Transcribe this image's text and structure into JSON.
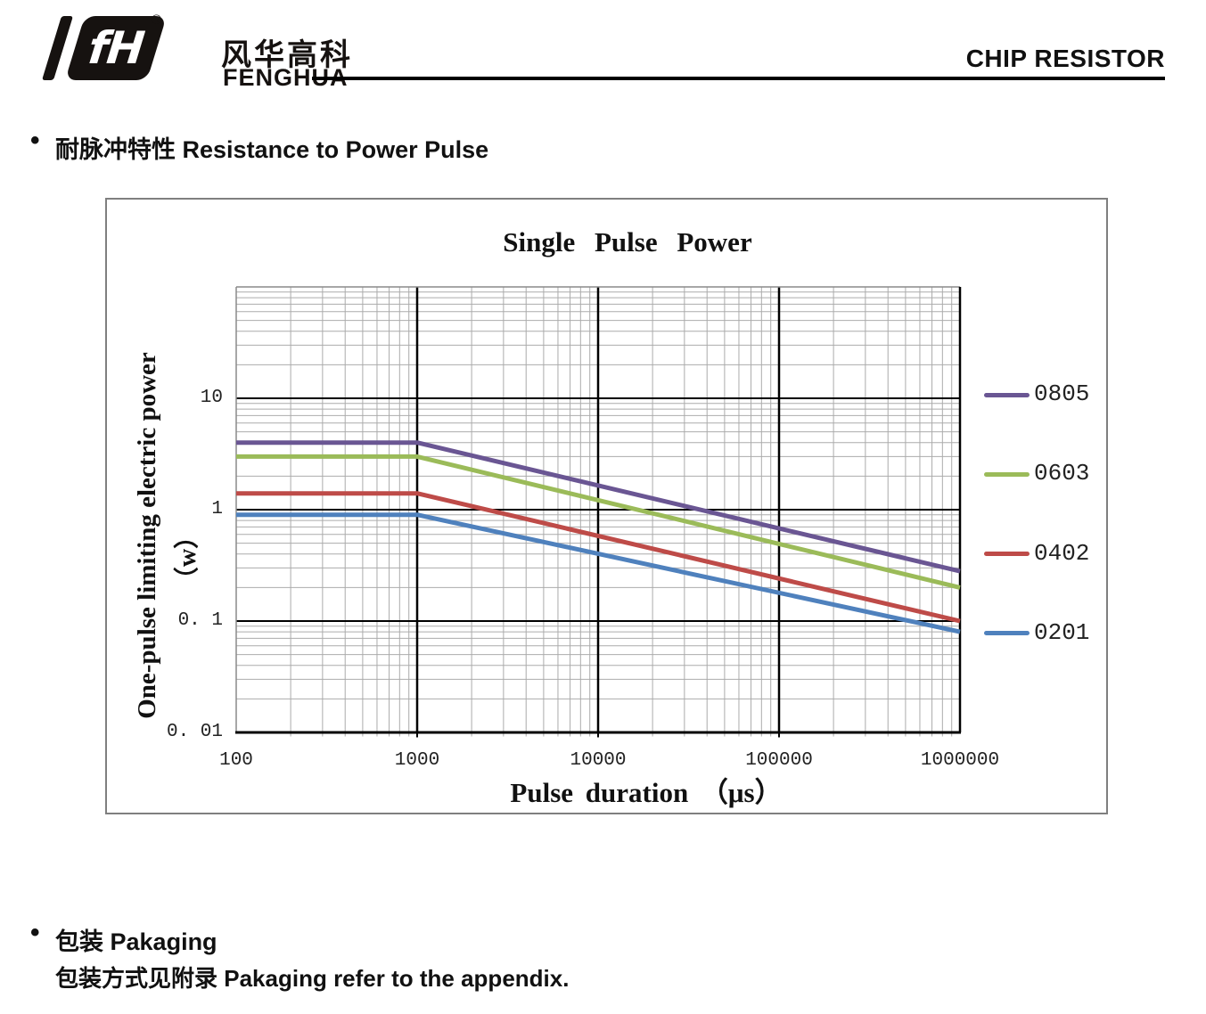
{
  "header": {
    "brand_cn": "风华高科",
    "brand_en": "FENGHUA",
    "registered_mark": "®",
    "logo_monogram": "fH",
    "doc_title": "CHIP RESISTOR"
  },
  "section": {
    "bullet": "•",
    "title_cn": "耐脉冲特性",
    "title_en": "Resistance to Power Pulse"
  },
  "chart_data": {
    "type": "line",
    "title": "Single Pulse Power",
    "xlabel": "Pulse duration （μs）",
    "ylabel_line1": "One-pulse limiting electric power",
    "ylabel_line2": "（w）",
    "x_scale": "log",
    "y_scale": "log",
    "xlim": [
      100,
      1000000
    ],
    "ylim": [
      0.01,
      100
    ],
    "x_ticks": [
      {
        "value": 100,
        "label": "100"
      },
      {
        "value": 1000,
        "label": "1000"
      },
      {
        "value": 10000,
        "label": "10000"
      },
      {
        "value": 100000,
        "label": "100000"
      },
      {
        "value": 1000000,
        "label": "1000000"
      }
    ],
    "y_ticks": [
      {
        "value": 10,
        "label": "10"
      },
      {
        "value": 1,
        "label": "1"
      },
      {
        "value": 0.1,
        "label": "0. 1"
      },
      {
        "value": 0.01,
        "label": "0. 01"
      }
    ],
    "grid": {
      "minor": true,
      "minor_color": "#ABABAB",
      "major_color": "#000000",
      "frame_color": "#8A8A8A"
    },
    "legend_position": "right",
    "series": [
      {
        "name": "0805",
        "color": "#6A5693",
        "x": [
          100,
          1000,
          1000000
        ],
        "y": [
          4,
          4,
          0.28
        ]
      },
      {
        "name": "0603",
        "color": "#9BBB59",
        "x": [
          100,
          1000,
          1000000
        ],
        "y": [
          3,
          3,
          0.2
        ]
      },
      {
        "name": "0402",
        "color": "#BE4B48",
        "x": [
          100,
          1000,
          1000000
        ],
        "y": [
          1.4,
          1.4,
          0.1
        ]
      },
      {
        "name": "0201",
        "color": "#4F81BD",
        "x": [
          100,
          1000,
          1000000
        ],
        "y": [
          0.9,
          0.9,
          0.08
        ]
      }
    ]
  },
  "footer": {
    "bullet": "•",
    "packaging_title_cn": "包装",
    "packaging_title_en": "Pakaging",
    "packaging_note_cn": "包装方式见附录",
    "packaging_note_en": "Pakaging refer to the appendix."
  }
}
